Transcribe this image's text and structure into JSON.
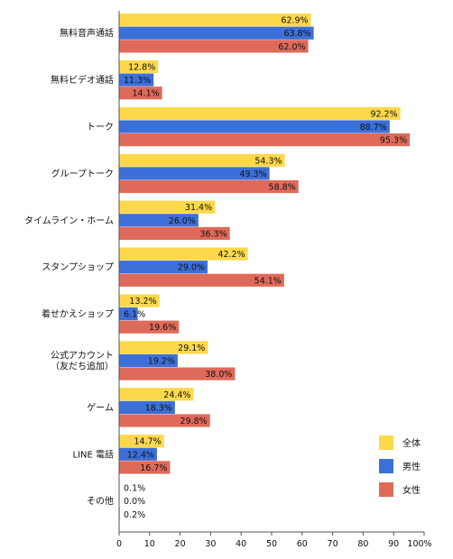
{
  "chart_data": {
    "type": "bar",
    "orientation": "horizontal",
    "categories": [
      "無料音声通話",
      "無料ビデオ通話",
      "トーク",
      "グループトーク",
      "タイムライン・ホーム",
      "スタンプショップ",
      "着せかえショップ",
      "公式アカウント\n（友だち追加）",
      "ゲーム",
      "LINE 電話",
      "その他"
    ],
    "series": [
      {
        "name": "全体",
        "color": "#FDD84B",
        "values": [
          62.9,
          12.8,
          92.2,
          54.3,
          31.4,
          42.2,
          13.2,
          29.1,
          24.4,
          14.7,
          0.1
        ],
        "labels": [
          "62.9%",
          "12.8%",
          "92.2%",
          "54.3%",
          "31.4%",
          "42.2%",
          "13.2%",
          "29.1%",
          "24.4%",
          "14.7%",
          "0.1%"
        ]
      },
      {
        "name": "男性",
        "color": "#3D6FD8",
        "values": [
          63.8,
          11.3,
          88.7,
          49.3,
          26.0,
          29.0,
          6.1,
          19.2,
          18.3,
          12.4,
          0.0
        ],
        "labels": [
          "63.8%",
          "11.3%",
          "88.7%",
          "49.3%",
          "26.0%",
          "29.0%",
          "6.1%",
          "19.2%",
          "18.3%",
          "12.4%",
          "0.0%"
        ]
      },
      {
        "name": "女性",
        "color": "#E06A5A",
        "values": [
          62.0,
          14.1,
          95.3,
          58.8,
          36.3,
          54.1,
          19.6,
          38.0,
          29.8,
          16.7,
          0.2
        ],
        "labels": [
          "62.0%",
          "14.1%",
          "95.3%",
          "58.8%",
          "36.3%",
          "54.1%",
          "19.6%",
          "38.0%",
          "29.8%",
          "16.7%",
          "0.2%"
        ]
      }
    ],
    "xlim": [
      0,
      100
    ],
    "xticks": [
      "0",
      "10",
      "20",
      "30",
      "40",
      "50",
      "60",
      "70",
      "80",
      "90",
      "100%"
    ],
    "legend": "right",
    "grid": false
  }
}
